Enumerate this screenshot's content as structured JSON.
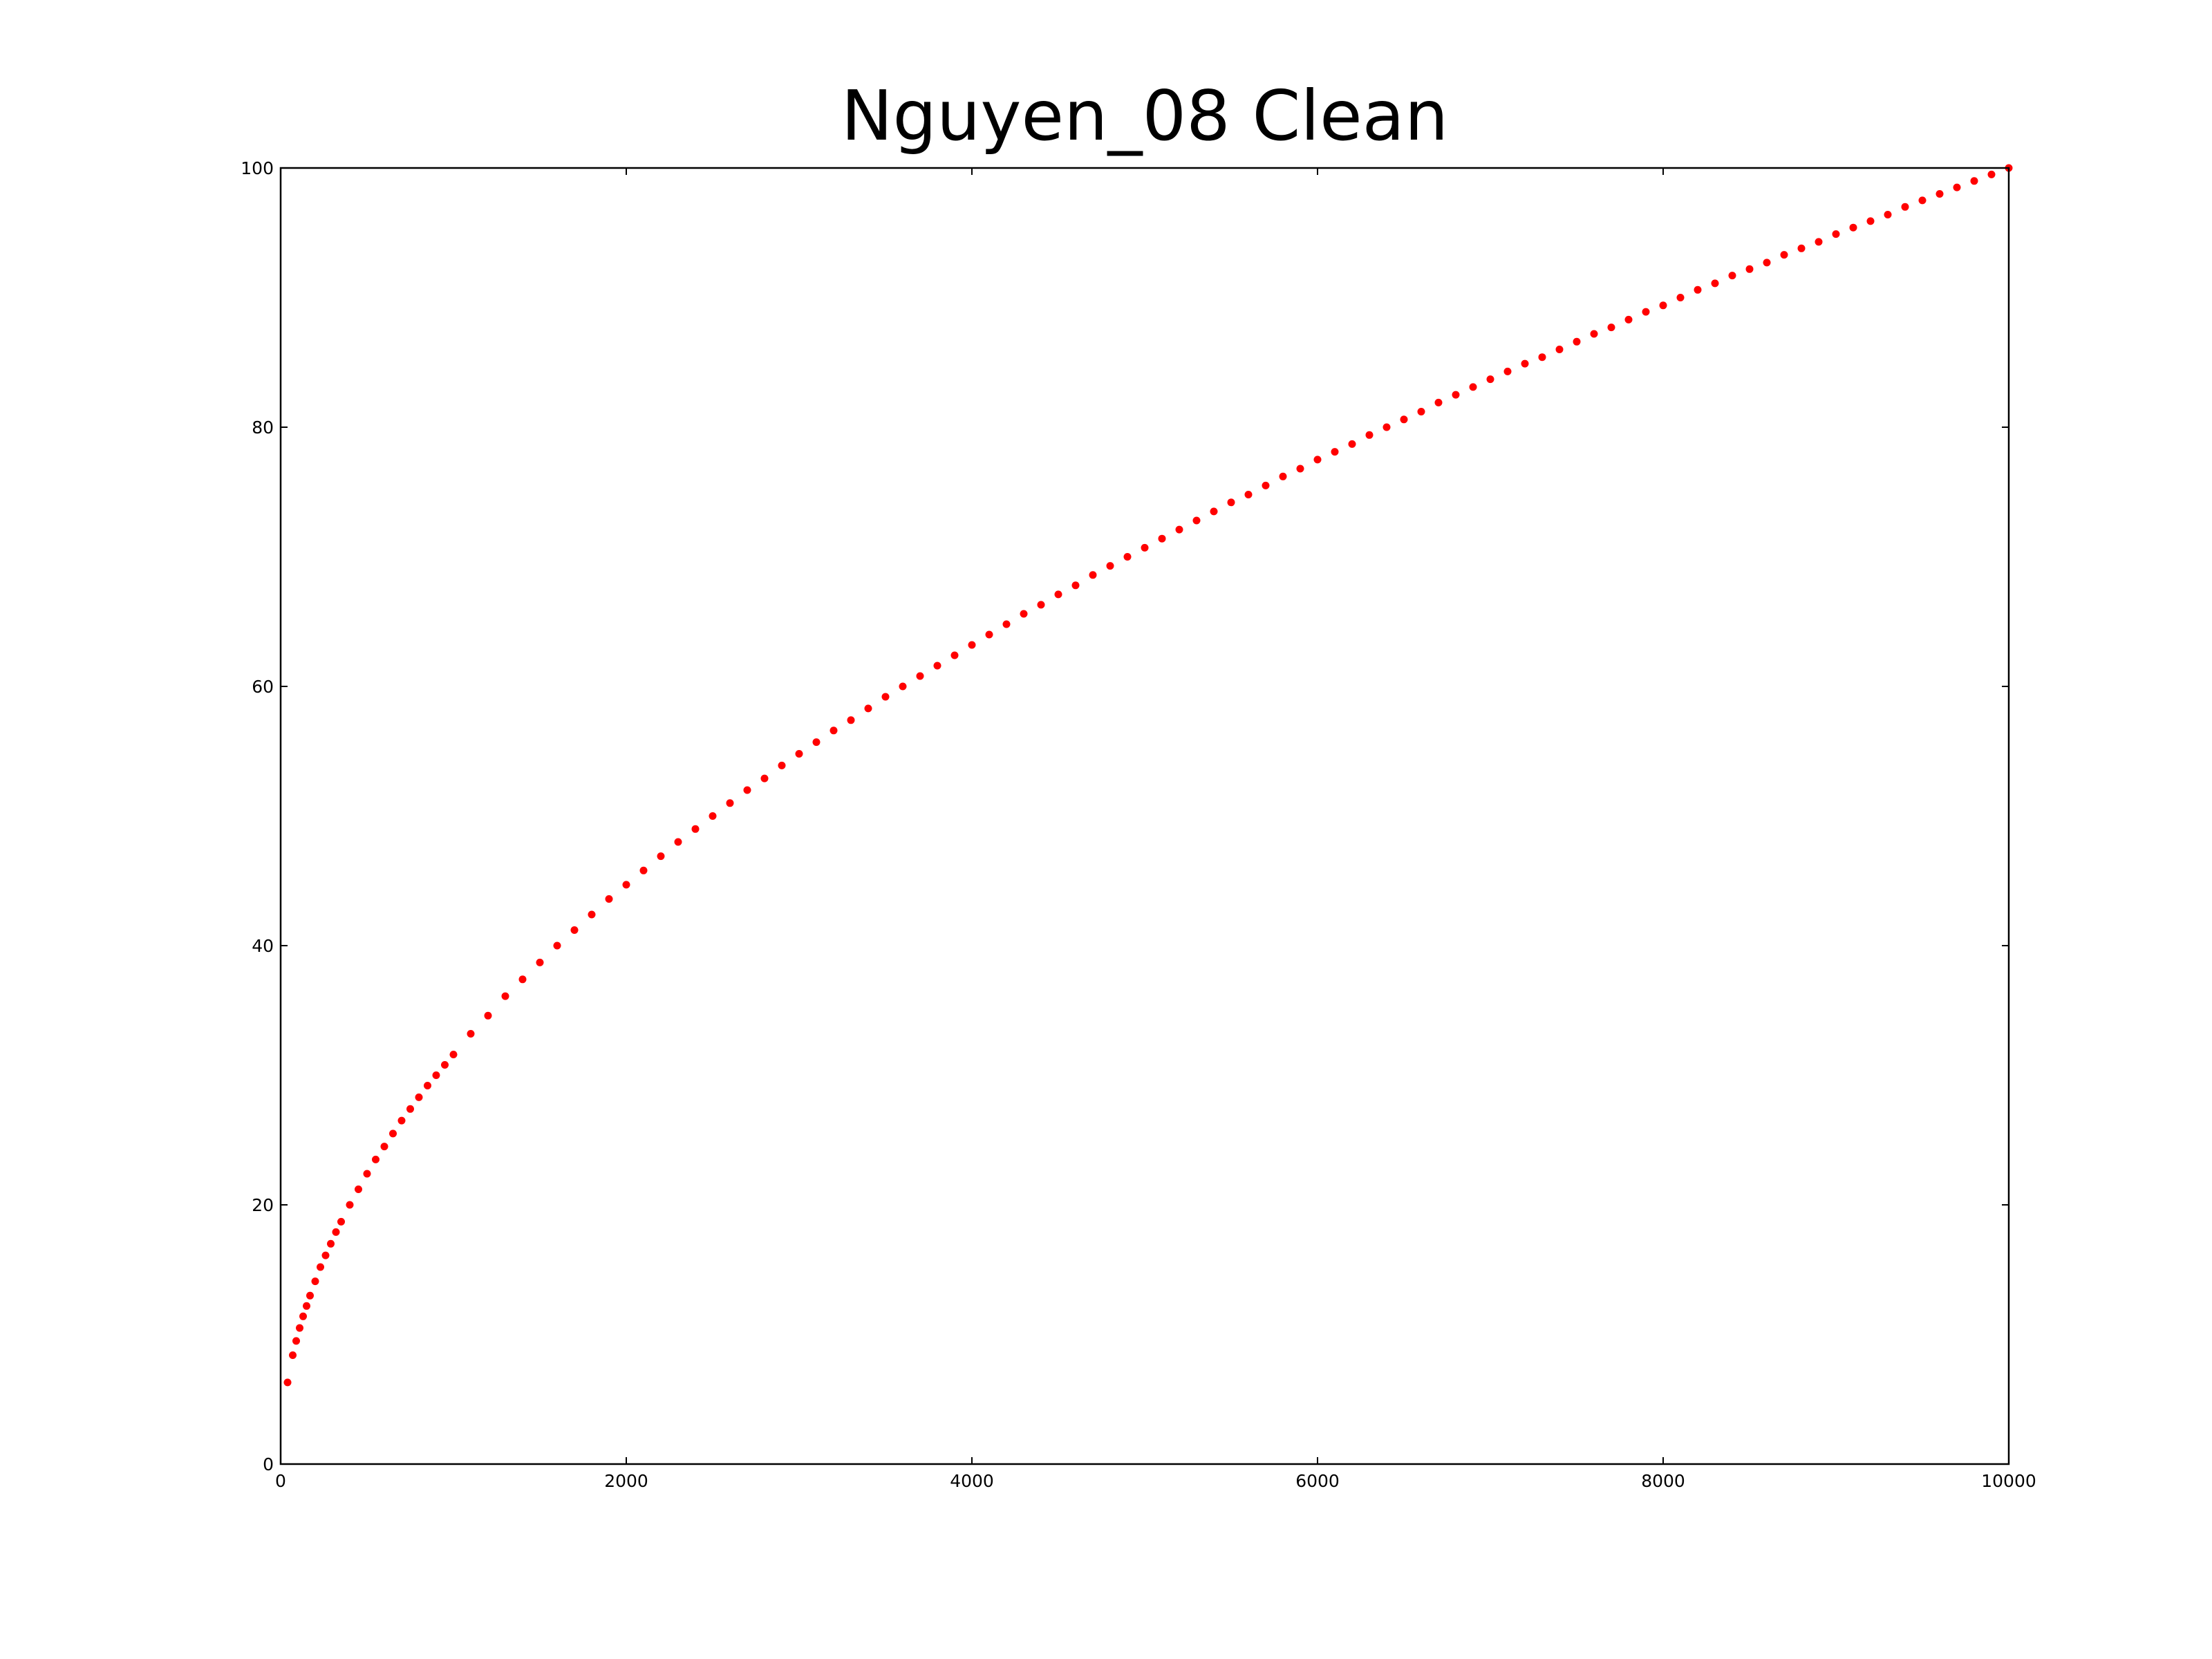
{
  "chart_data": {
    "type": "scatter",
    "title": "Nguyen_08 Clean",
    "xlabel": "",
    "ylabel": "",
    "xlim": [
      0,
      10000
    ],
    "ylim": [
      0,
      100
    ],
    "x_ticks": [
      "0",
      "2000",
      "4000",
      "6000",
      "8000",
      "10000"
    ],
    "y_ticks": [
      "0",
      "20",
      "40",
      "60",
      "80",
      "100"
    ],
    "grid": false,
    "legend": "none",
    "marker_color": "#ff0000",
    "series": [
      {
        "points": [
          [
            40,
            6.3
          ],
          [
            70,
            8.4
          ],
          [
            90,
            9.5
          ],
          [
            110,
            10.5
          ],
          [
            130,
            11.4
          ],
          [
            150,
            12.2
          ],
          [
            170,
            13.0
          ],
          [
            200,
            14.1
          ],
          [
            230,
            15.2
          ],
          [
            260,
            16.1
          ],
          [
            290,
            17.0
          ],
          [
            320,
            17.9
          ],
          [
            350,
            18.7
          ],
          [
            400,
            20.0
          ],
          [
            450,
            21.2
          ],
          [
            500,
            22.4
          ],
          [
            550,
            23.5
          ],
          [
            600,
            24.5
          ],
          [
            650,
            25.5
          ],
          [
            700,
            26.5
          ],
          [
            750,
            27.4
          ],
          [
            800,
            28.3
          ],
          [
            850,
            29.2
          ],
          [
            900,
            30.0
          ],
          [
            950,
            30.8
          ],
          [
            1000,
            31.6
          ],
          [
            1100,
            33.2
          ],
          [
            1200,
            34.6
          ],
          [
            1300,
            36.1
          ],
          [
            1400,
            37.4
          ],
          [
            1500,
            38.7
          ],
          [
            1600,
            40.0
          ],
          [
            1700,
            41.2
          ],
          [
            1800,
            42.4
          ],
          [
            1900,
            43.6
          ],
          [
            2000,
            44.7
          ],
          [
            2100,
            45.8
          ],
          [
            2200,
            46.9
          ],
          [
            2300,
            48.0
          ],
          [
            2400,
            49.0
          ],
          [
            2500,
            50.0
          ],
          [
            2600,
            51.0
          ],
          [
            2700,
            52.0
          ],
          [
            2800,
            52.9
          ],
          [
            2900,
            53.9
          ],
          [
            3000,
            54.8
          ],
          [
            3100,
            55.7
          ],
          [
            3200,
            56.6
          ],
          [
            3300,
            57.4
          ],
          [
            3400,
            58.3
          ],
          [
            3500,
            59.2
          ],
          [
            3600,
            60.0
          ],
          [
            3700,
            60.8
          ],
          [
            3800,
            61.6
          ],
          [
            3900,
            62.4
          ],
          [
            4000,
            63.2
          ],
          [
            4100,
            64.0
          ],
          [
            4200,
            64.8
          ],
          [
            4300,
            65.6
          ],
          [
            4400,
            66.3
          ],
          [
            4500,
            67.1
          ],
          [
            4600,
            67.8
          ],
          [
            4700,
            68.6
          ],
          [
            4800,
            69.3
          ],
          [
            4900,
            70.0
          ],
          [
            5000,
            70.7
          ],
          [
            5100,
            71.4
          ],
          [
            5200,
            72.1
          ],
          [
            5300,
            72.8
          ],
          [
            5400,
            73.5
          ],
          [
            5500,
            74.2
          ],
          [
            5600,
            74.8
          ],
          [
            5700,
            75.5
          ],
          [
            5800,
            76.2
          ],
          [
            5900,
            76.8
          ],
          [
            6000,
            77.5
          ],
          [
            6100,
            78.1
          ],
          [
            6200,
            78.7
          ],
          [
            6300,
            79.4
          ],
          [
            6400,
            80.0
          ],
          [
            6500,
            80.6
          ],
          [
            6600,
            81.2
          ],
          [
            6700,
            81.9
          ],
          [
            6800,
            82.5
          ],
          [
            6900,
            83.1
          ],
          [
            7000,
            83.7
          ],
          [
            7100,
            84.3
          ],
          [
            7200,
            84.9
          ],
          [
            7300,
            85.4
          ],
          [
            7400,
            86.0
          ],
          [
            7500,
            86.6
          ],
          [
            7600,
            87.2
          ],
          [
            7700,
            87.7
          ],
          [
            7800,
            88.3
          ],
          [
            7900,
            88.9
          ],
          [
            8000,
            89.4
          ],
          [
            8100,
            90.0
          ],
          [
            8200,
            90.6
          ],
          [
            8300,
            91.1
          ],
          [
            8400,
            91.7
          ],
          [
            8500,
            92.2
          ],
          [
            8600,
            92.7
          ],
          [
            8700,
            93.3
          ],
          [
            8800,
            93.8
          ],
          [
            8900,
            94.3
          ],
          [
            9000,
            94.9
          ],
          [
            9100,
            95.4
          ],
          [
            9200,
            95.9
          ],
          [
            9300,
            96.4
          ],
          [
            9400,
            97.0
          ],
          [
            9500,
            97.5
          ],
          [
            9600,
            98.0
          ],
          [
            9700,
            98.5
          ],
          [
            9800,
            99.0
          ],
          [
            9900,
            99.5
          ],
          [
            10000,
            100.0
          ]
        ]
      }
    ]
  }
}
